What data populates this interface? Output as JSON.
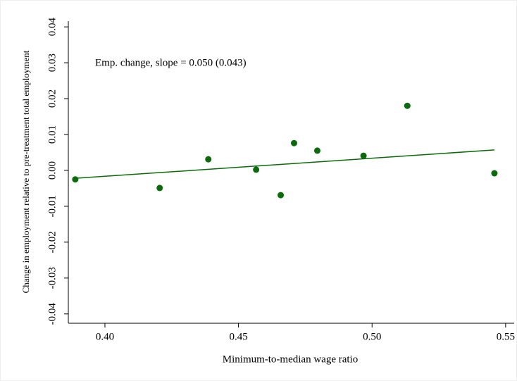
{
  "chart_data": {
    "type": "scatter",
    "x_label": "Minimum-to-median wage ratio",
    "y_label": "Change in employment relative to pre-treatment total employment",
    "annotation": "Emp. change, slope =  0.050 (0.043)",
    "color": "#0b6a0b",
    "x": [
      0.3889,
      0.4205,
      0.4387,
      0.4566,
      0.4658,
      0.4708,
      0.4795,
      0.4968,
      0.5132,
      0.5458
    ],
    "values": [
      -0.0025,
      -0.0049,
      0.0031,
      0.0002,
      -0.0069,
      0.0076,
      0.0055,
      0.0041,
      0.018,
      -0.0008
    ],
    "fit": {
      "x": [
        0.3889,
        0.5458
      ],
      "values": [
        -0.0022,
        0.0057
      ]
    },
    "xlim": [
      0.3863,
      0.5532
    ],
    "ylim": [
      -0.0426,
      0.0416
    ],
    "xticks": [
      {
        "value": 0.4,
        "label": "0.40"
      },
      {
        "value": 0.45,
        "label": "0.45"
      },
      {
        "value": 0.5,
        "label": "0.50"
      },
      {
        "value": 0.55,
        "label": "0.55"
      }
    ],
    "yticks": [
      {
        "value": -0.04,
        "label": "-0.04"
      },
      {
        "value": -0.03,
        "label": "-0.03"
      },
      {
        "value": -0.02,
        "label": "-0.02"
      },
      {
        "value": -0.01,
        "label": "-0.01"
      },
      {
        "value": 0,
        "label": "0.00"
      },
      {
        "value": 0.01,
        "label": "0.01"
      },
      {
        "value": 0.02,
        "label": "0.02"
      },
      {
        "value": 0.03,
        "label": "0.03"
      },
      {
        "value": 0.04,
        "label": "0.04"
      }
    ]
  }
}
